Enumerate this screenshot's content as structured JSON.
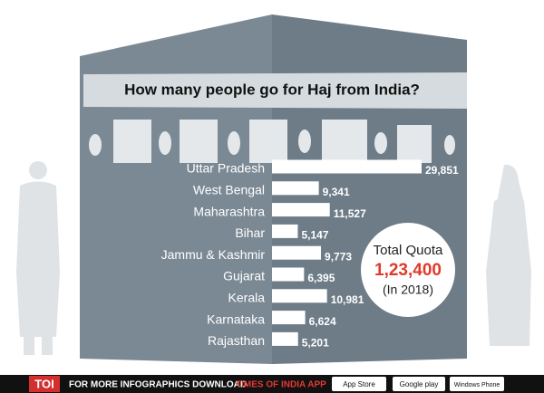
{
  "chart_data": {
    "type": "bar",
    "orientation": "horizontal",
    "title": "How many people go for Haj from India?",
    "categories": [
      "Uttar Pradesh",
      "West Bengal",
      "Maharashtra",
      "Bihar",
      "Jammu & Kashmir",
      "Gujarat",
      "Kerala",
      "Karnataka",
      "Rajasthan"
    ],
    "values": [
      29851,
      9341,
      11527,
      5147,
      9773,
      6395,
      10981,
      6624,
      5201
    ],
    "value_labels": [
      "29,851",
      "9,341",
      "11,527",
      "5,147",
      "9,773",
      "6,395",
      "10,981",
      "6,624",
      "5,201"
    ],
    "color": "#ffffff",
    "annotation": {
      "label": "Total Quota",
      "total": "1,23,400",
      "note": "(In 2018)"
    }
  },
  "footer": {
    "logo": "TOI",
    "text": "FOR MORE INFOGRAPHICS DOWNLOAD",
    "highlight": "TIMES OF INDIA APP",
    "badges": [
      "App Store",
      "Google play",
      "Windows Phone"
    ]
  }
}
